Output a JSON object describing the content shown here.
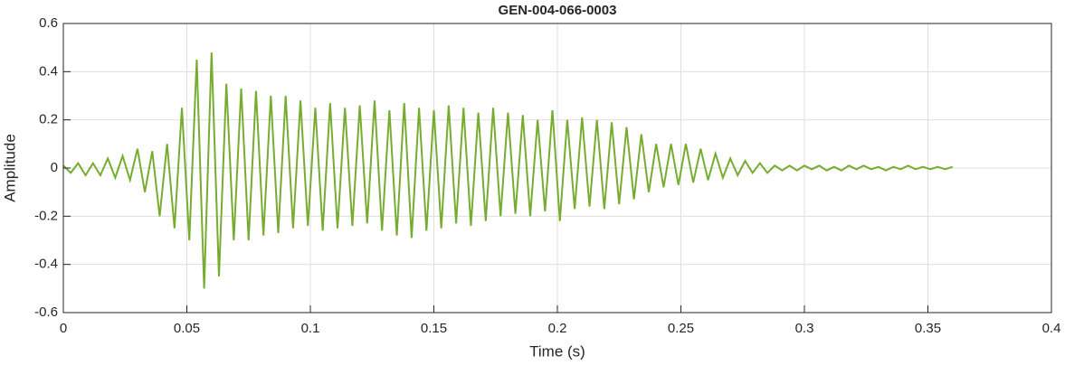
{
  "chart_data": {
    "type": "line",
    "title": "GEN-004-066-0003",
    "xlabel": "Time (s)",
    "ylabel": "Amplitude",
    "x": [
      0,
      0.003,
      0.006,
      0.009,
      0.012,
      0.015,
      0.018,
      0.021,
      0.024,
      0.027,
      0.03,
      0.033,
      0.036,
      0.039,
      0.042,
      0.045,
      0.048,
      0.051,
      0.054,
      0.057,
      0.06,
      0.063,
      0.066,
      0.069,
      0.072,
      0.075,
      0.078,
      0.081,
      0.084,
      0.087,
      0.09,
      0.093,
      0.096,
      0.099,
      0.102,
      0.105,
      0.108,
      0.111,
      0.114,
      0.117,
      0.12,
      0.123,
      0.126,
      0.129,
      0.132,
      0.135,
      0.138,
      0.141,
      0.144,
      0.147,
      0.15,
      0.153,
      0.156,
      0.159,
      0.162,
      0.165,
      0.168,
      0.171,
      0.174,
      0.177,
      0.18,
      0.183,
      0.186,
      0.189,
      0.192,
      0.195,
      0.198,
      0.201,
      0.204,
      0.207,
      0.21,
      0.213,
      0.216,
      0.219,
      0.222,
      0.225,
      0.228,
      0.231,
      0.234,
      0.237,
      0.24,
      0.243,
      0.246,
      0.249,
      0.252,
      0.255,
      0.258,
      0.261,
      0.264,
      0.267,
      0.27,
      0.273,
      0.276,
      0.279,
      0.282,
      0.285,
      0.288,
      0.291,
      0.294,
      0.297,
      0.3,
      0.303,
      0.306,
      0.309,
      0.312,
      0.315,
      0.318,
      0.321,
      0.324,
      0.327,
      0.33,
      0.333,
      0.336,
      0.339,
      0.342,
      0.345,
      0.348,
      0.351,
      0.354,
      0.357,
      0.36
    ],
    "series": [
      {
        "color": "#77ac30",
        "values": [
          0.01,
          -0.02,
          0.02,
          -0.03,
          0.02,
          -0.03,
          0.04,
          -0.04,
          0.05,
          -0.05,
          0.08,
          -0.1,
          0.07,
          -0.2,
          0.1,
          -0.25,
          0.25,
          -0.3,
          0.45,
          -0.5,
          0.48,
          -0.45,
          0.35,
          -0.3,
          0.33,
          -0.3,
          0.32,
          -0.28,
          0.3,
          -0.27,
          0.3,
          -0.25,
          0.28,
          -0.24,
          0.25,
          -0.26,
          0.27,
          -0.25,
          0.25,
          -0.24,
          0.26,
          -0.23,
          0.28,
          -0.26,
          0.24,
          -0.28,
          0.27,
          -0.29,
          0.25,
          -0.26,
          0.24,
          -0.25,
          0.26,
          -0.23,
          0.25,
          -0.24,
          0.23,
          -0.22,
          0.25,
          -0.2,
          0.23,
          -0.19,
          0.22,
          -0.2,
          0.2,
          -0.18,
          0.24,
          -0.22,
          0.2,
          -0.17,
          0.21,
          -0.16,
          0.2,
          -0.17,
          0.19,
          -0.15,
          0.17,
          -0.13,
          0.14,
          -0.1,
          0.1,
          -0.08,
          0.1,
          -0.07,
          0.1,
          -0.06,
          0.08,
          -0.05,
          0.06,
          -0.04,
          0.04,
          -0.03,
          0.03,
          -0.02,
          0.02,
          -0.02,
          0.01,
          -0.01,
          0.01,
          -0.01,
          0.01,
          -0.005,
          0.01,
          -0.01,
          0.005,
          -0.01,
          0.01,
          -0.005,
          0.01,
          -0.005,
          0.005,
          -0.01,
          0.005,
          -0.005,
          0.01,
          -0.005,
          0.005,
          -0.005,
          0.005,
          -0.005,
          0.005
        ]
      }
    ],
    "xlim": [
      0,
      0.4
    ],
    "xticks": [
      0,
      0.05,
      0.1,
      0.15,
      0.2,
      0.25,
      0.3,
      0.35,
      0.4
    ],
    "ylim": [
      -0.6,
      0.6
    ],
    "yticks": [
      -0.6,
      -0.4,
      -0.2,
      0,
      0.2,
      0.4,
      0.6
    ],
    "grid": true
  }
}
